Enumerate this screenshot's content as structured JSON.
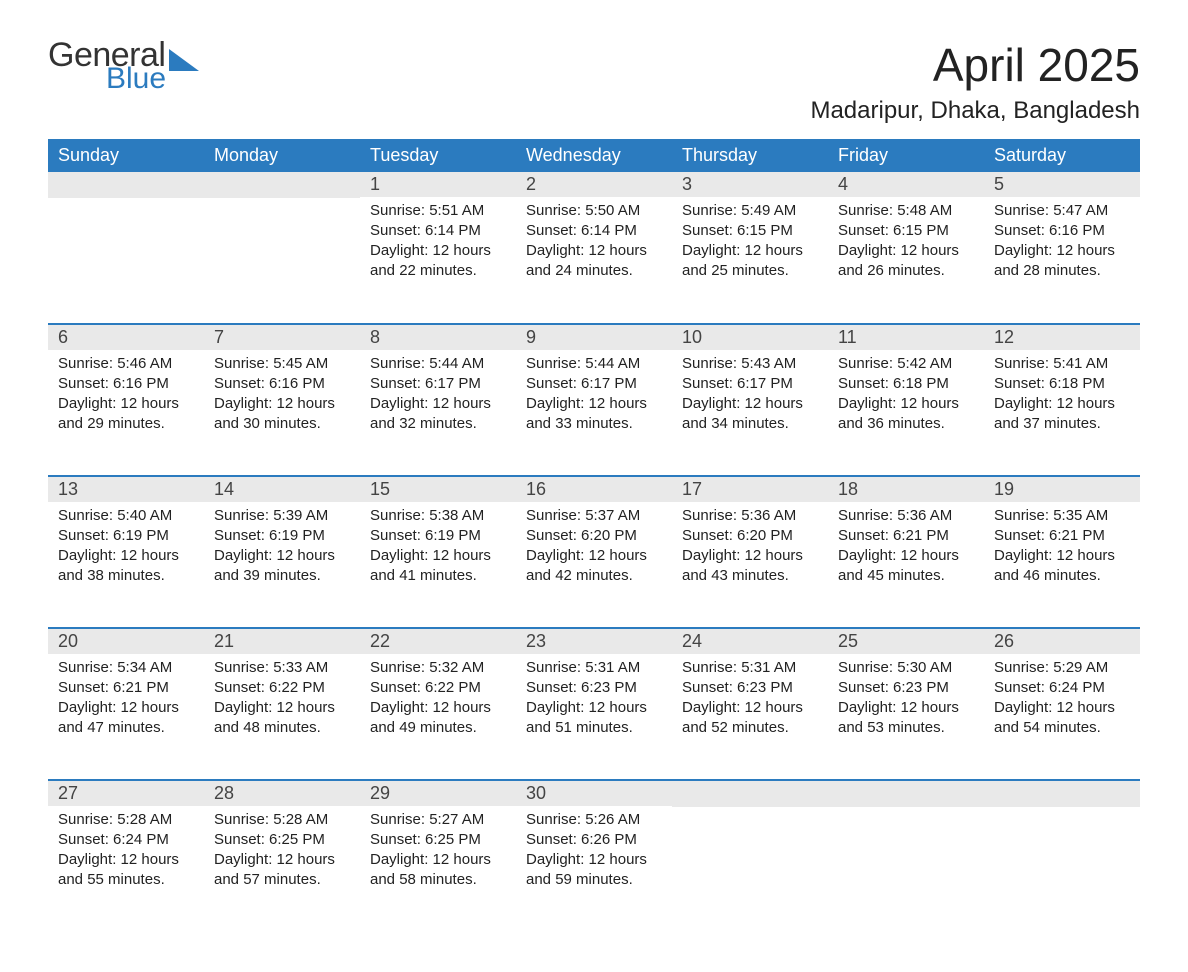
{
  "logo": {
    "line1": "General",
    "line2": "Blue"
  },
  "title": {
    "month": "April 2025",
    "location": "Madaripur, Dhaka, Bangladesh"
  },
  "style": {
    "brand_blue": "#2b7bbf",
    "header_bg": "#2b7bbf",
    "header_text": "#ffffff",
    "daynum_bg": "#e9e9e9",
    "text_color": "#222222",
    "row_rule": "#2b7bbf",
    "month_fontsize": 46,
    "location_fontsize": 24,
    "th_fontsize": 18,
    "daynum_fontsize": 18,
    "body_fontsize": 15
  },
  "columns": [
    "Sunday",
    "Monday",
    "Tuesday",
    "Wednesday",
    "Thursday",
    "Friday",
    "Saturday"
  ],
  "weeks": [
    [
      {
        "empty": true
      },
      {
        "empty": true
      },
      {
        "day": "1",
        "sunrise": "Sunrise: 5:51 AM",
        "sunset": "Sunset: 6:14 PM",
        "daylight": "Daylight: 12 hours and 22 minutes."
      },
      {
        "day": "2",
        "sunrise": "Sunrise: 5:50 AM",
        "sunset": "Sunset: 6:14 PM",
        "daylight": "Daylight: 12 hours and 24 minutes."
      },
      {
        "day": "3",
        "sunrise": "Sunrise: 5:49 AM",
        "sunset": "Sunset: 6:15 PM",
        "daylight": "Daylight: 12 hours and 25 minutes."
      },
      {
        "day": "4",
        "sunrise": "Sunrise: 5:48 AM",
        "sunset": "Sunset: 6:15 PM",
        "daylight": "Daylight: 12 hours and 26 minutes."
      },
      {
        "day": "5",
        "sunrise": "Sunrise: 5:47 AM",
        "sunset": "Sunset: 6:16 PM",
        "daylight": "Daylight: 12 hours and 28 minutes."
      }
    ],
    [
      {
        "day": "6",
        "sunrise": "Sunrise: 5:46 AM",
        "sunset": "Sunset: 6:16 PM",
        "daylight": "Daylight: 12 hours and 29 minutes."
      },
      {
        "day": "7",
        "sunrise": "Sunrise: 5:45 AM",
        "sunset": "Sunset: 6:16 PM",
        "daylight": "Daylight: 12 hours and 30 minutes."
      },
      {
        "day": "8",
        "sunrise": "Sunrise: 5:44 AM",
        "sunset": "Sunset: 6:17 PM",
        "daylight": "Daylight: 12 hours and 32 minutes."
      },
      {
        "day": "9",
        "sunrise": "Sunrise: 5:44 AM",
        "sunset": "Sunset: 6:17 PM",
        "daylight": "Daylight: 12 hours and 33 minutes."
      },
      {
        "day": "10",
        "sunrise": "Sunrise: 5:43 AM",
        "sunset": "Sunset: 6:17 PM",
        "daylight": "Daylight: 12 hours and 34 minutes."
      },
      {
        "day": "11",
        "sunrise": "Sunrise: 5:42 AM",
        "sunset": "Sunset: 6:18 PM",
        "daylight": "Daylight: 12 hours and 36 minutes."
      },
      {
        "day": "12",
        "sunrise": "Sunrise: 5:41 AM",
        "sunset": "Sunset: 6:18 PM",
        "daylight": "Daylight: 12 hours and 37 minutes."
      }
    ],
    [
      {
        "day": "13",
        "sunrise": "Sunrise: 5:40 AM",
        "sunset": "Sunset: 6:19 PM",
        "daylight": "Daylight: 12 hours and 38 minutes."
      },
      {
        "day": "14",
        "sunrise": "Sunrise: 5:39 AM",
        "sunset": "Sunset: 6:19 PM",
        "daylight": "Daylight: 12 hours and 39 minutes."
      },
      {
        "day": "15",
        "sunrise": "Sunrise: 5:38 AM",
        "sunset": "Sunset: 6:19 PM",
        "daylight": "Daylight: 12 hours and 41 minutes."
      },
      {
        "day": "16",
        "sunrise": "Sunrise: 5:37 AM",
        "sunset": "Sunset: 6:20 PM",
        "daylight": "Daylight: 12 hours and 42 minutes."
      },
      {
        "day": "17",
        "sunrise": "Sunrise: 5:36 AM",
        "sunset": "Sunset: 6:20 PM",
        "daylight": "Daylight: 12 hours and 43 minutes."
      },
      {
        "day": "18",
        "sunrise": "Sunrise: 5:36 AM",
        "sunset": "Sunset: 6:21 PM",
        "daylight": "Daylight: 12 hours and 45 minutes."
      },
      {
        "day": "19",
        "sunrise": "Sunrise: 5:35 AM",
        "sunset": "Sunset: 6:21 PM",
        "daylight": "Daylight: 12 hours and 46 minutes."
      }
    ],
    [
      {
        "day": "20",
        "sunrise": "Sunrise: 5:34 AM",
        "sunset": "Sunset: 6:21 PM",
        "daylight": "Daylight: 12 hours and 47 minutes."
      },
      {
        "day": "21",
        "sunrise": "Sunrise: 5:33 AM",
        "sunset": "Sunset: 6:22 PM",
        "daylight": "Daylight: 12 hours and 48 minutes."
      },
      {
        "day": "22",
        "sunrise": "Sunrise: 5:32 AM",
        "sunset": "Sunset: 6:22 PM",
        "daylight": "Daylight: 12 hours and 49 minutes."
      },
      {
        "day": "23",
        "sunrise": "Sunrise: 5:31 AM",
        "sunset": "Sunset: 6:23 PM",
        "daylight": "Daylight: 12 hours and 51 minutes."
      },
      {
        "day": "24",
        "sunrise": "Sunrise: 5:31 AM",
        "sunset": "Sunset: 6:23 PM",
        "daylight": "Daylight: 12 hours and 52 minutes."
      },
      {
        "day": "25",
        "sunrise": "Sunrise: 5:30 AM",
        "sunset": "Sunset: 6:23 PM",
        "daylight": "Daylight: 12 hours and 53 minutes."
      },
      {
        "day": "26",
        "sunrise": "Sunrise: 5:29 AM",
        "sunset": "Sunset: 6:24 PM",
        "daylight": "Daylight: 12 hours and 54 minutes."
      }
    ],
    [
      {
        "day": "27",
        "sunrise": "Sunrise: 5:28 AM",
        "sunset": "Sunset: 6:24 PM",
        "daylight": "Daylight: 12 hours and 55 minutes."
      },
      {
        "day": "28",
        "sunrise": "Sunrise: 5:28 AM",
        "sunset": "Sunset: 6:25 PM",
        "daylight": "Daylight: 12 hours and 57 minutes."
      },
      {
        "day": "29",
        "sunrise": "Sunrise: 5:27 AM",
        "sunset": "Sunset: 6:25 PM",
        "daylight": "Daylight: 12 hours and 58 minutes."
      },
      {
        "day": "30",
        "sunrise": "Sunrise: 5:26 AM",
        "sunset": "Sunset: 6:26 PM",
        "daylight": "Daylight: 12 hours and 59 minutes."
      },
      {
        "empty": true
      },
      {
        "empty": true
      },
      {
        "empty": true
      }
    ]
  ]
}
